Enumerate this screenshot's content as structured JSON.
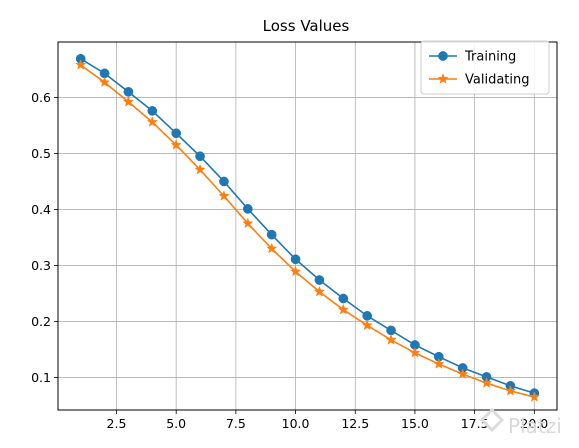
{
  "chart_data": {
    "type": "line",
    "title": "Loss Values",
    "xlabel": "",
    "ylabel": "",
    "x": [
      1,
      2,
      3,
      4,
      5,
      6,
      7,
      8,
      9,
      10,
      11,
      12,
      13,
      14,
      15,
      16,
      17,
      18,
      19,
      20
    ],
    "series": [
      {
        "name": "Training",
        "color": "#1f77b4",
        "marker": "circle",
        "values": [
          0.669,
          0.643,
          0.61,
          0.576,
          0.536,
          0.495,
          0.45,
          0.401,
          0.355,
          0.311,
          0.274,
          0.241,
          0.21,
          0.184,
          0.158,
          0.137,
          0.117,
          0.101,
          0.085,
          0.072
        ]
      },
      {
        "name": "Validating",
        "color": "#ff7f0e",
        "marker": "star",
        "values": [
          0.658,
          0.627,
          0.592,
          0.556,
          0.515,
          0.471,
          0.424,
          0.375,
          0.33,
          0.289,
          0.253,
          0.221,
          0.193,
          0.167,
          0.144,
          0.124,
          0.106,
          0.09,
          0.076,
          0.065
        ]
      }
    ],
    "xticks": [
      2.5,
      5.0,
      7.5,
      10.0,
      12.5,
      15.0,
      17.5,
      20.0
    ],
    "xtick_labels": [
      "2.5",
      "5.0",
      "7.5",
      "10.0",
      "12.5",
      "15.0",
      "17.5",
      "20.0"
    ],
    "yticks": [
      0.1,
      0.2,
      0.3,
      0.4,
      0.5,
      0.6
    ],
    "ytick_labels": [
      "0.1",
      "0.2",
      "0.3",
      "0.4",
      "0.5",
      "0.6"
    ],
    "xlim": [
      0.05,
      20.95
    ],
    "ylim": [
      0.0419,
      0.699
    ],
    "grid": true,
    "legend_position": "top-right"
  },
  "watermark": "Platzi"
}
